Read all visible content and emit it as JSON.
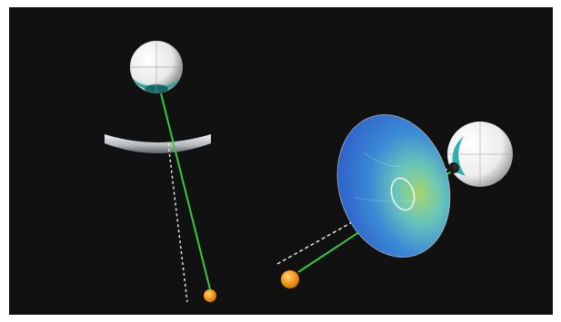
{
  "scene": {
    "background_color": "#111111",
    "page_background": "#ffffff",
    "left_eye": {
      "iris_color": "#1aa7a0",
      "sclera_color": "#f2f2f2"
    },
    "left_lens": {
      "color": "#cfd3d6"
    },
    "right_eye": {
      "iris_color": "#14a6a6",
      "pupil_color": "#1a1a1a",
      "sclera_color": "#f4f4f4"
    },
    "tilted_lens": {
      "fill_colors": [
        "#2b57c6",
        "#3b88d6",
        "#6ac6b8",
        "#a7d46c"
      ]
    },
    "sight_line_color": "#39c844",
    "reference_line_color": "#e6e6e6",
    "target_color": "#f39a1a"
  }
}
